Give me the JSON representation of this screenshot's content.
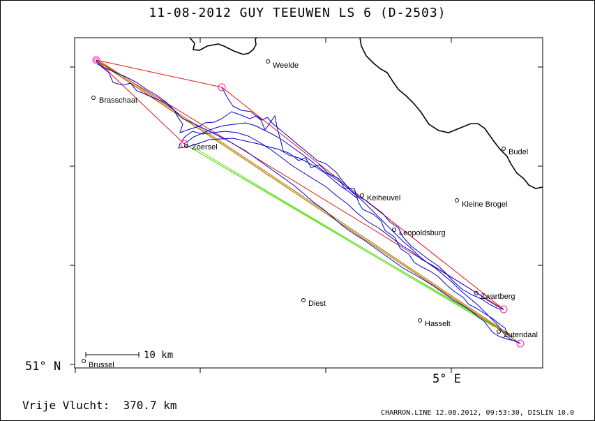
{
  "title": "11-08-2012   GUY TEEUWEN   LS 6 (D-2503)",
  "axes": {
    "lat_label": "51° N",
    "lon_label": "5° E"
  },
  "scale_bar": {
    "label": "10 km"
  },
  "cities": [
    {
      "name": "Weelde"
    },
    {
      "name": "Brasschaat"
    },
    {
      "name": "Zoersel"
    },
    {
      "name": "Budel"
    },
    {
      "name": "Kleine Brogel"
    },
    {
      "name": "Keiheuvel"
    },
    {
      "name": "Leopoldsburg"
    },
    {
      "name": "Zwartberg"
    },
    {
      "name": "Diest"
    },
    {
      "name": "Hasselt"
    },
    {
      "name": "Zutendaal"
    },
    {
      "name": "Brussel"
    }
  ],
  "distance_text": "Vrije Vlucht:  370.7 km",
  "footer_text": "CHARRON.LINE 12.08.2012, 09:53:30, DISLIN 10.0",
  "colors": {
    "track": "#0000cc",
    "border": "#000000",
    "task_red": "#ee1111",
    "task_olive": "#b8860b",
    "task_green": "#66dd22",
    "turnpoint": "#ee22aa"
  }
}
